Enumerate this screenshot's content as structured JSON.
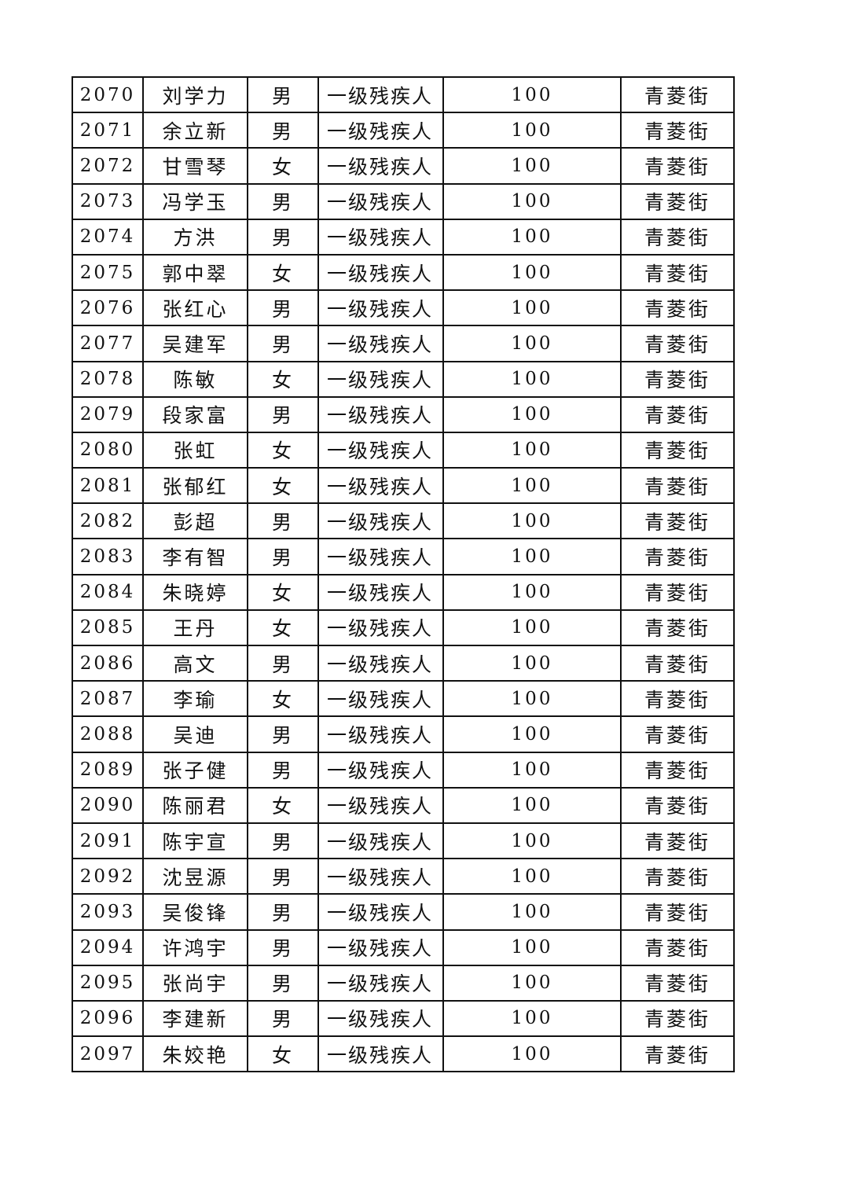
{
  "table": {
    "rows": [
      [
        "2070",
        "刘学力",
        "男",
        "一级残疾人",
        "100",
        "青菱街"
      ],
      [
        "2071",
        "余立新",
        "男",
        "一级残疾人",
        "100",
        "青菱街"
      ],
      [
        "2072",
        "甘雪琴",
        "女",
        "一级残疾人",
        "100",
        "青菱街"
      ],
      [
        "2073",
        "冯学玉",
        "男",
        "一级残疾人",
        "100",
        "青菱街"
      ],
      [
        "2074",
        "方洪",
        "男",
        "一级残疾人",
        "100",
        "青菱街"
      ],
      [
        "2075",
        "郭中翠",
        "女",
        "一级残疾人",
        "100",
        "青菱街"
      ],
      [
        "2076",
        "张红心",
        "男",
        "一级残疾人",
        "100",
        "青菱街"
      ],
      [
        "2077",
        "吴建军",
        "男",
        "一级残疾人",
        "100",
        "青菱街"
      ],
      [
        "2078",
        "陈敏",
        "女",
        "一级残疾人",
        "100",
        "青菱街"
      ],
      [
        "2079",
        "段家富",
        "男",
        "一级残疾人",
        "100",
        "青菱街"
      ],
      [
        "2080",
        "张虹",
        "女",
        "一级残疾人",
        "100",
        "青菱街"
      ],
      [
        "2081",
        "张郁红",
        "女",
        "一级残疾人",
        "100",
        "青菱街"
      ],
      [
        "2082",
        "彭超",
        "男",
        "一级残疾人",
        "100",
        "青菱街"
      ],
      [
        "2083",
        "李有智",
        "男",
        "一级残疾人",
        "100",
        "青菱街"
      ],
      [
        "2084",
        "朱晓婷",
        "女",
        "一级残疾人",
        "100",
        "青菱街"
      ],
      [
        "2085",
        "王丹",
        "女",
        "一级残疾人",
        "100",
        "青菱街"
      ],
      [
        "2086",
        "高文",
        "男",
        "一级残疾人",
        "100",
        "青菱街"
      ],
      [
        "2087",
        "李瑜",
        "女",
        "一级残疾人",
        "100",
        "青菱街"
      ],
      [
        "2088",
        "吴迪",
        "男",
        "一级残疾人",
        "100",
        "青菱街"
      ],
      [
        "2089",
        "张子健",
        "男",
        "一级残疾人",
        "100",
        "青菱街"
      ],
      [
        "2090",
        "陈丽君",
        "女",
        "一级残疾人",
        "100",
        "青菱街"
      ],
      [
        "2091",
        "陈宇宣",
        "男",
        "一级残疾人",
        "100",
        "青菱街"
      ],
      [
        "2092",
        "沈昱源",
        "男",
        "一级残疾人",
        "100",
        "青菱街"
      ],
      [
        "2093",
        "吴俊锋",
        "男",
        "一级残疾人",
        "100",
        "青菱街"
      ],
      [
        "2094",
        "许鸿宇",
        "男",
        "一级残疾人",
        "100",
        "青菱街"
      ],
      [
        "2095",
        "张尚宇",
        "男",
        "一级残疾人",
        "100",
        "青菱街"
      ],
      [
        "2096",
        "李建新",
        "男",
        "一级残疾人",
        "100",
        "青菱街"
      ],
      [
        "2097",
        "朱姣艳",
        "女",
        "一级残疾人",
        "100",
        "青菱街"
      ]
    ]
  }
}
